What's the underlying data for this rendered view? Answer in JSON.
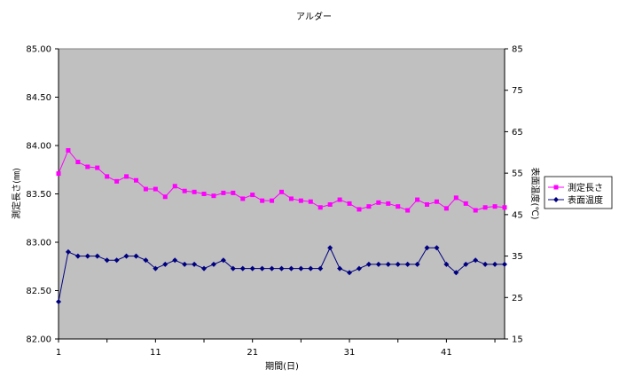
{
  "chart_data": {
    "type": "line",
    "title": "アルダー",
    "xlabel": "期間(日)",
    "ylabel_left": "測定長さ(㎜)",
    "ylabel_right": "表面温度(℃)",
    "xlim": [
      1,
      47
    ],
    "x_ticks": [
      "1",
      "11",
      "21",
      "31",
      "41"
    ],
    "ylim_left": [
      82.0,
      85.0
    ],
    "y_ticks_left": [
      "82.00",
      "82.50",
      "83.00",
      "83.50",
      "84.00",
      "84.50",
      "85.00"
    ],
    "ylim_right": [
      15,
      85
    ],
    "y_ticks_right": [
      "15",
      "25",
      "35",
      "45",
      "55",
      "65",
      "75",
      "85"
    ],
    "grid": false,
    "legend_position": "right",
    "background": "#c0c0c0",
    "series": [
      {
        "name": "測定長さ",
        "axis": "left",
        "color": "#ff00ff",
        "marker": "square",
        "x": [
          1,
          2,
          3,
          4,
          5,
          6,
          7,
          8,
          9,
          10,
          11,
          12,
          13,
          14,
          15,
          16,
          17,
          18,
          19,
          20,
          21,
          22,
          23,
          24,
          25,
          26,
          27,
          28,
          29,
          30,
          31,
          32,
          33,
          34,
          35,
          36,
          37,
          38,
          39,
          40,
          41,
          42,
          43,
          44,
          45,
          46,
          47
        ],
        "values": [
          83.71,
          83.95,
          83.83,
          83.78,
          83.77,
          83.68,
          83.63,
          83.68,
          83.64,
          83.55,
          83.55,
          83.47,
          83.58,
          83.53,
          83.52,
          83.5,
          83.48,
          83.51,
          83.51,
          83.45,
          83.49,
          83.43,
          83.43,
          83.52,
          83.45,
          83.43,
          83.42,
          83.36,
          83.39,
          83.44,
          83.4,
          83.34,
          83.37,
          83.41,
          83.4,
          83.37,
          83.33,
          83.44,
          83.39,
          83.42,
          83.35,
          83.46,
          83.4,
          83.33,
          83.36,
          83.37,
          83.36
        ]
      },
      {
        "name": "表面温度",
        "axis": "right",
        "color": "#000080",
        "marker": "diamond",
        "x": [
          1,
          2,
          3,
          4,
          5,
          6,
          7,
          8,
          9,
          10,
          11,
          12,
          13,
          14,
          15,
          16,
          17,
          18,
          19,
          20,
          21,
          22,
          23,
          24,
          25,
          26,
          27,
          28,
          29,
          30,
          31,
          32,
          33,
          34,
          35,
          36,
          37,
          38,
          39,
          40,
          41,
          42,
          43,
          44,
          45,
          46,
          47
        ],
        "values": [
          24,
          36,
          35,
          35,
          35,
          34,
          34,
          35,
          35,
          34,
          32,
          33,
          34,
          33,
          33,
          32,
          33,
          34,
          32,
          32,
          32,
          32,
          32,
          32,
          32,
          32,
          32,
          32,
          37,
          32,
          31,
          32,
          33,
          33,
          33,
          33,
          33,
          33,
          37,
          37,
          33,
          31,
          33,
          34,
          33,
          33,
          33
        ]
      }
    ]
  }
}
